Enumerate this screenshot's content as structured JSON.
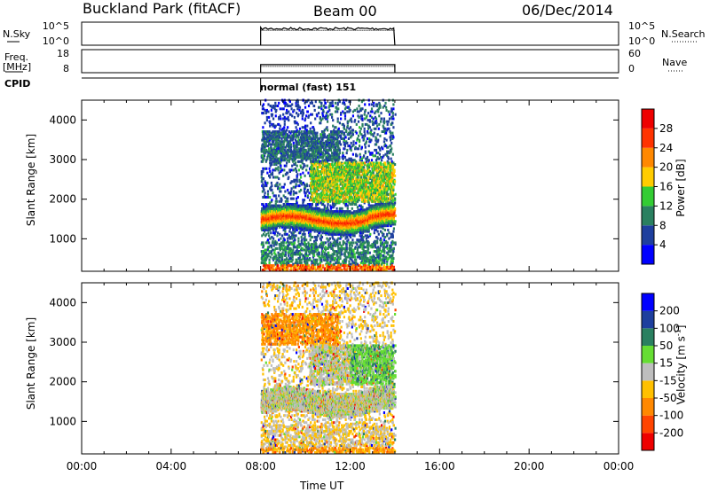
{
  "header": {
    "station": "Buckland Park (fitACF)",
    "beam": "Beam 00",
    "date": "06/Dec/2014"
  },
  "colors": {
    "axis": "#000000",
    "power_scale": [
      "#0000ff",
      "#1e3f9e",
      "#2a8060",
      "#33cc33",
      "#ffcc00",
      "#ff8800",
      "#ff3300",
      "#ee0000"
    ],
    "velocity_scale": [
      "#ee0000",
      "#ff4400",
      "#ff8800",
      "#ffc000",
      "#bebebe",
      "#66dd33",
      "#2a8060",
      "#1e3f9e",
      "#0000ff"
    ]
  },
  "chart_data": [
    {
      "type": "line",
      "id": "noise",
      "left_label": "N.Sky",
      "right_label": "N.Search",
      "left_ticks": [
        "10^5",
        "10^0"
      ],
      "right_ticks": [
        "10^5",
        "10^0"
      ],
      "x_range": [
        "08:00",
        "14:00"
      ],
      "level_fraction": 0.72
    },
    {
      "type": "line",
      "id": "frequency",
      "left_label": "Freq.",
      "left_unit": "[MHz]",
      "right_label": "Nave",
      "left_ticks": [
        "18",
        "8"
      ],
      "right_ticks": [
        "60",
        "0"
      ],
      "x_range": [
        "08:00",
        "14:00"
      ],
      "level_fraction": 0.35
    },
    {
      "type": "heatmap",
      "id": "cpid",
      "label": "CPID",
      "annotation": "normal (fast) 151",
      "annotation_time": "08:00"
    },
    {
      "type": "heatmap",
      "id": "power",
      "ylabel": "Slant Range [km]",
      "ylim": [
        180,
        4500
      ],
      "yticks": [
        1000,
        2000,
        3000,
        4000
      ],
      "xlim": [
        "00:00",
        "00:00"
      ],
      "data_window": [
        "08:00",
        "14:00"
      ],
      "colorbar_label": "Power [dB]",
      "colorbar_ticks": [
        4,
        8,
        12,
        16,
        20,
        24,
        28
      ]
    },
    {
      "type": "heatmap",
      "id": "velocity",
      "ylabel": "Slant Range [km]",
      "ylim": [
        180,
        4500
      ],
      "yticks": [
        1000,
        2000,
        3000,
        4000
      ],
      "xlim": [
        "00:00",
        "00:00"
      ],
      "data_window": [
        "08:00",
        "14:00"
      ],
      "xlabel": "Time UT",
      "xticks": [
        "00:00",
        "04:00",
        "08:00",
        "12:00",
        "16:00",
        "20:00",
        "00:00"
      ],
      "colorbar_label": "Velocity [m s",
      "colorbar_label_sup": "-1",
      "colorbar_label_end": "]",
      "colorbar_ticks": [
        200,
        100,
        50,
        15,
        -15,
        -50,
        -100,
        -200
      ]
    }
  ]
}
